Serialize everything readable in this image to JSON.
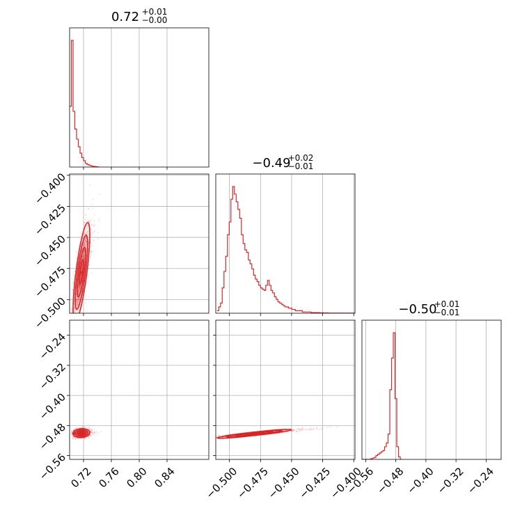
{
  "chart_data": {
    "type": "corner",
    "color": "#d62728",
    "grid": true,
    "parameters": [
      {
        "index": 0,
        "range": [
          0.7,
          0.9
        ],
        "ticks": [
          "0.72",
          "0.76",
          "0.80",
          "0.84"
        ],
        "tick_values": [
          0.72,
          0.76,
          0.8,
          0.84
        ]
      },
      {
        "index": 1,
        "range": [
          -0.511,
          -0.399
        ],
        "ticks": [
          "−0.400",
          "−0.425",
          "−0.450",
          "−0.475",
          "−0.500"
        ],
        "tick_values": [
          -0.4,
          -0.425,
          -0.45,
          -0.475,
          -0.5
        ]
      },
      {
        "index": 2,
        "range": [
          -0.57,
          -0.2
        ],
        "ticks": [
          "−0.56",
          "−0.48",
          "−0.40",
          "−0.32",
          "−0.24"
        ],
        "tick_values": [
          -0.56,
          -0.48,
          -0.4,
          -0.32,
          -0.24
        ]
      }
    ],
    "lower_ticks_bottom": [
      {
        "param": 0,
        "labels": [
          "0.72",
          "0.76",
          "0.80",
          "0.84"
        ]
      },
      {
        "param": 1,
        "labels": [
          "−0.500",
          "−0.475",
          "−0.450",
          "−0.425",
          "−0.400"
        ]
      },
      {
        "param": 2,
        "labels": [
          "−0.56",
          "−0.48",
          "−0.40",
          "−0.32",
          "−0.24"
        ]
      }
    ],
    "titles": [
      {
        "param": 0,
        "median": "0.72",
        "plus": "+0.01",
        "minus": "−0.00"
      },
      {
        "param": 1,
        "median": "−0.49",
        "plus": "+0.02",
        "minus": "−0.01"
      },
      {
        "param": 2,
        "median": "−0.50",
        "plus": "+0.01",
        "minus": "−0.01"
      }
    ],
    "histograms": [
      {
        "param": 0,
        "bin_edges_start": 0.7,
        "bin_width": 0.0025,
        "counts": [
          0.48,
          1.0,
          0.44,
          0.3,
          0.22,
          0.16,
          0.11,
          0.075,
          0.05,
          0.03,
          0.02,
          0.015,
          0.01,
          0.006,
          0.004,
          0.002,
          0.001
        ]
      },
      {
        "param": 1,
        "bin_edges_start": -0.51,
        "bin_width": 0.0014,
        "counts": [
          0.02,
          0.05,
          0.08,
          0.2,
          0.33,
          0.45,
          0.62,
          0.72,
          0.9,
          1.0,
          0.94,
          0.88,
          0.82,
          0.75,
          0.62,
          0.55,
          0.5,
          0.48,
          0.42,
          0.39,
          0.35,
          0.3,
          0.27,
          0.25,
          0.22,
          0.2,
          0.19,
          0.18,
          0.22,
          0.26,
          0.22,
          0.18,
          0.16,
          0.13,
          0.11,
          0.09,
          0.08,
          0.07,
          0.06,
          0.05,
          0.05,
          0.04,
          0.04,
          0.03,
          0.03,
          0.02,
          0.02,
          0.02,
          0.02,
          0.01,
          0.01,
          0.01,
          0.01,
          0.01,
          0.005,
          0.005,
          0.005,
          0.005,
          0.004,
          0.003,
          0.003,
          0.002,
          0.002,
          0.002,
          0.001,
          0.001,
          0.001,
          0.001,
          0.001,
          0.001,
          0.001,
          0.001,
          0.001,
          0.001,
          0.001,
          0.001,
          0.001,
          0.001,
          0.001,
          0.001
        ]
      },
      {
        "param": 2,
        "bin_edges_start": -0.57,
        "bin_width": 0.00463,
        "counts": [
          0.0,
          0.0,
          0.0,
          0.0,
          0.0,
          0.005,
          0.01,
          0.015,
          0.03,
          0.04,
          0.05,
          0.06,
          0.07,
          0.1,
          0.13,
          0.2,
          0.55,
          0.8,
          1.0,
          0.48,
          0.1,
          0.02,
          0.0
        ]
      }
    ],
    "joint": [
      {
        "row": 1,
        "col": 0,
        "center": [
          0.717,
          -0.478
        ],
        "spread": [
          0.006,
          0.02
        ],
        "corr": 0.75
      },
      {
        "row": 2,
        "col": 0,
        "center": [
          0.717,
          -0.5
        ],
        "spread": [
          0.006,
          0.006
        ],
        "corr": 0.1
      },
      {
        "row": 2,
        "col": 1,
        "center": [
          -0.48,
          -0.502
        ],
        "spread": [
          0.015,
          0.006
        ],
        "corr": 0.92
      }
    ]
  }
}
